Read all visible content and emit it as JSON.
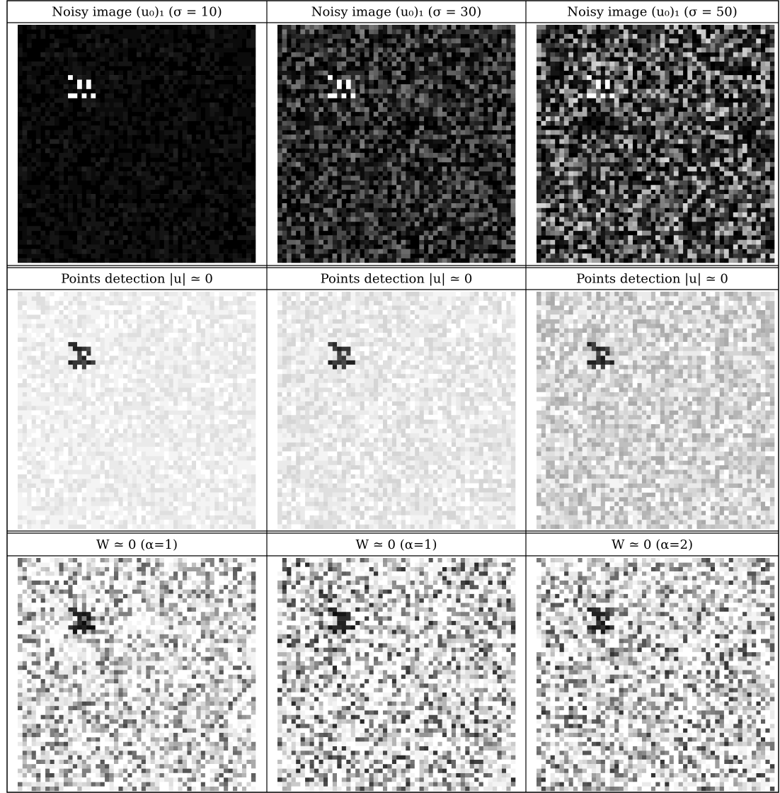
{
  "rows": [
    {
      "cells": [
        {
          "title": "Noisy image (u₀)₁ (σ = 10)"
        },
        {
          "title": "Noisy image (u₀)₁ (σ = 30)"
        },
        {
          "title": "Noisy image (u₀)₁ (σ = 50)"
        }
      ]
    },
    {
      "cells": [
        {
          "title": "Points detection |u| ≃ 0"
        },
        {
          "title": "Points detection |u| ≃ 0"
        },
        {
          "title": "Points detection |u| ≃ 0"
        }
      ]
    },
    {
      "cells": [
        {
          "title": "W ≃ 0 (α=1)"
        },
        {
          "title": "W ≃ 0 (α=1)"
        },
        {
          "title": "W ≃ 0 (α=2)"
        }
      ]
    }
  ]
}
